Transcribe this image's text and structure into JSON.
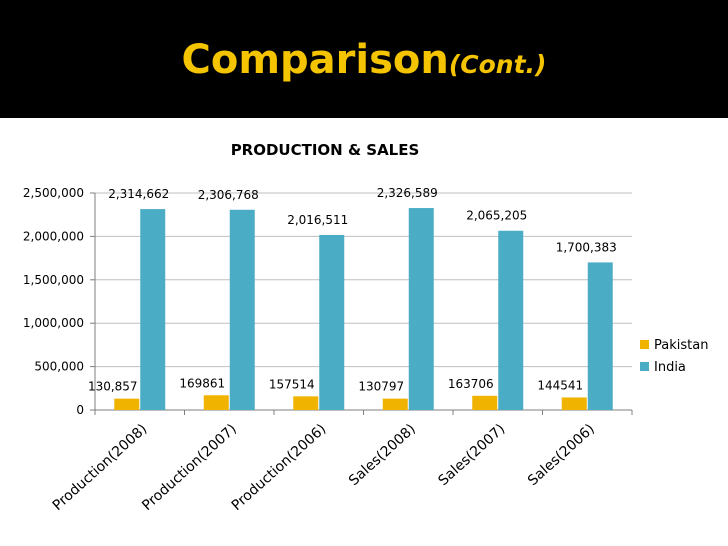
{
  "slide": {
    "title_main": "Comparison",
    "title_sub": "(Cont.)",
    "accent_color": "#f5c400",
    "header_bg": "#000000"
  },
  "chart_data": {
    "type": "bar",
    "title": "PRODUCTION  & SALES",
    "xlabel": "",
    "ylabel": "",
    "categories": [
      "Production(2008)",
      "Production(2007)",
      "Production(2006)",
      "Sales(2008)",
      "Sales(2007)",
      "Sales(2006)"
    ],
    "series": [
      {
        "name": "Pakistan",
        "color": "#f0b400",
        "values": [
          130857,
          169861,
          157514,
          130797,
          163706,
          144541
        ],
        "labels": [
          "130,857",
          "169861",
          "157514",
          "130797",
          "163706",
          "144541"
        ]
      },
      {
        "name": "India",
        "color": "#4bacc6",
        "values": [
          2314662,
          2306768,
          2016511,
          2326589,
          2065205,
          1700383
        ],
        "labels": [
          "2,314,662",
          "2,306,768",
          "2,016,511",
          "2,326,589",
          "2,065,205",
          "1,700,383"
        ]
      }
    ],
    "ylim": [
      0,
      2500000
    ],
    "yticks": [
      0,
      500000,
      1000000,
      1500000,
      2000000,
      2500000
    ],
    "ytick_labels": [
      "0",
      "500,000",
      "1,000,000",
      "1,500,000",
      "2,000,000",
      "2,500,000"
    ],
    "grid": true,
    "legend": "right"
  }
}
